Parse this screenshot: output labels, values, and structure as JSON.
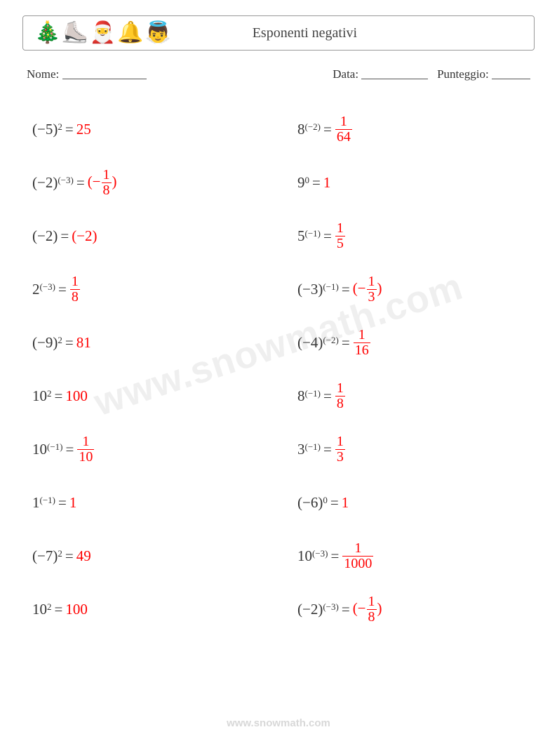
{
  "header": {
    "title": "Esponenti negativi",
    "icons": [
      "🎄",
      "⛸️",
      "🎅",
      "🔔",
      "👼"
    ]
  },
  "info": {
    "name_label": "Nome:",
    "date_label": "Data:",
    "score_label": "Punteggio:"
  },
  "colors": {
    "answer": "#ff0000",
    "text": "#333333"
  },
  "left": [
    {
      "base": "(−5)",
      "exp": "2",
      "eq": " = ",
      "ans_type": "int",
      "ans": "25"
    },
    {
      "base": "(−2)",
      "exp": "(−3)",
      "eq": " = ",
      "ans_type": "nfrac",
      "pre": "(−",
      "num": "1",
      "den": "8",
      "post": ")"
    },
    {
      "base": "(−2)",
      "exp": "",
      "eq": " = ",
      "ans_type": "int",
      "ans": "(−2)"
    },
    {
      "base": "2",
      "exp": "(−3)",
      "eq": " = ",
      "ans_type": "frac",
      "num": "1",
      "den": "8"
    },
    {
      "base": "(−9)",
      "exp": "2",
      "eq": " = ",
      "ans_type": "int",
      "ans": "81"
    },
    {
      "base": "10",
      "exp": "2",
      "eq": " = ",
      "ans_type": "int",
      "ans": "100"
    },
    {
      "base": "10",
      "exp": "(−1)",
      "eq": " = ",
      "ans_type": "frac",
      "num": "1",
      "den": "10"
    },
    {
      "base": "1",
      "exp": "(−1)",
      "eq": " = ",
      "ans_type": "int",
      "ans": "1"
    },
    {
      "base": "(−7)",
      "exp": "2",
      "eq": " = ",
      "ans_type": "int",
      "ans": "49"
    },
    {
      "base": "10",
      "exp": "2",
      "eq": " = ",
      "ans_type": "int",
      "ans": "100"
    }
  ],
  "right": [
    {
      "base": "8",
      "exp": "(−2)",
      "eq": " = ",
      "ans_type": "frac",
      "num": "1",
      "den": "64"
    },
    {
      "base": "9",
      "exp": "0",
      "eq": " = ",
      "ans_type": "int",
      "ans": "1"
    },
    {
      "base": "5",
      "exp": "(−1)",
      "eq": " = ",
      "ans_type": "frac",
      "num": "1",
      "den": "5"
    },
    {
      "base": "(−3)",
      "exp": "(−1)",
      "eq": " = ",
      "ans_type": "nfrac",
      "pre": "(−",
      "num": "1",
      "den": "3",
      "post": ")"
    },
    {
      "base": "(−4)",
      "exp": "(−2)",
      "eq": " = ",
      "ans_type": "frac",
      "num": "1",
      "den": "16"
    },
    {
      "base": "8",
      "exp": "(−1)",
      "eq": " = ",
      "ans_type": "frac",
      "num": "1",
      "den": "8"
    },
    {
      "base": "3",
      "exp": "(−1)",
      "eq": " = ",
      "ans_type": "frac",
      "num": "1",
      "den": "3"
    },
    {
      "base": "(−6)",
      "exp": "0",
      "eq": " = ",
      "ans_type": "int",
      "ans": "1"
    },
    {
      "base": "10",
      "exp": "(−3)",
      "eq": " = ",
      "ans_type": "frac",
      "num": "1",
      "den": "1000"
    },
    {
      "base": "(−2)",
      "exp": "(−3)",
      "eq": " = ",
      "ans_type": "nfrac",
      "pre": "(−",
      "num": "1",
      "den": "8",
      "post": ")"
    }
  ],
  "watermark": "www.snowmath.com",
  "footer": "www.snowmath.com"
}
